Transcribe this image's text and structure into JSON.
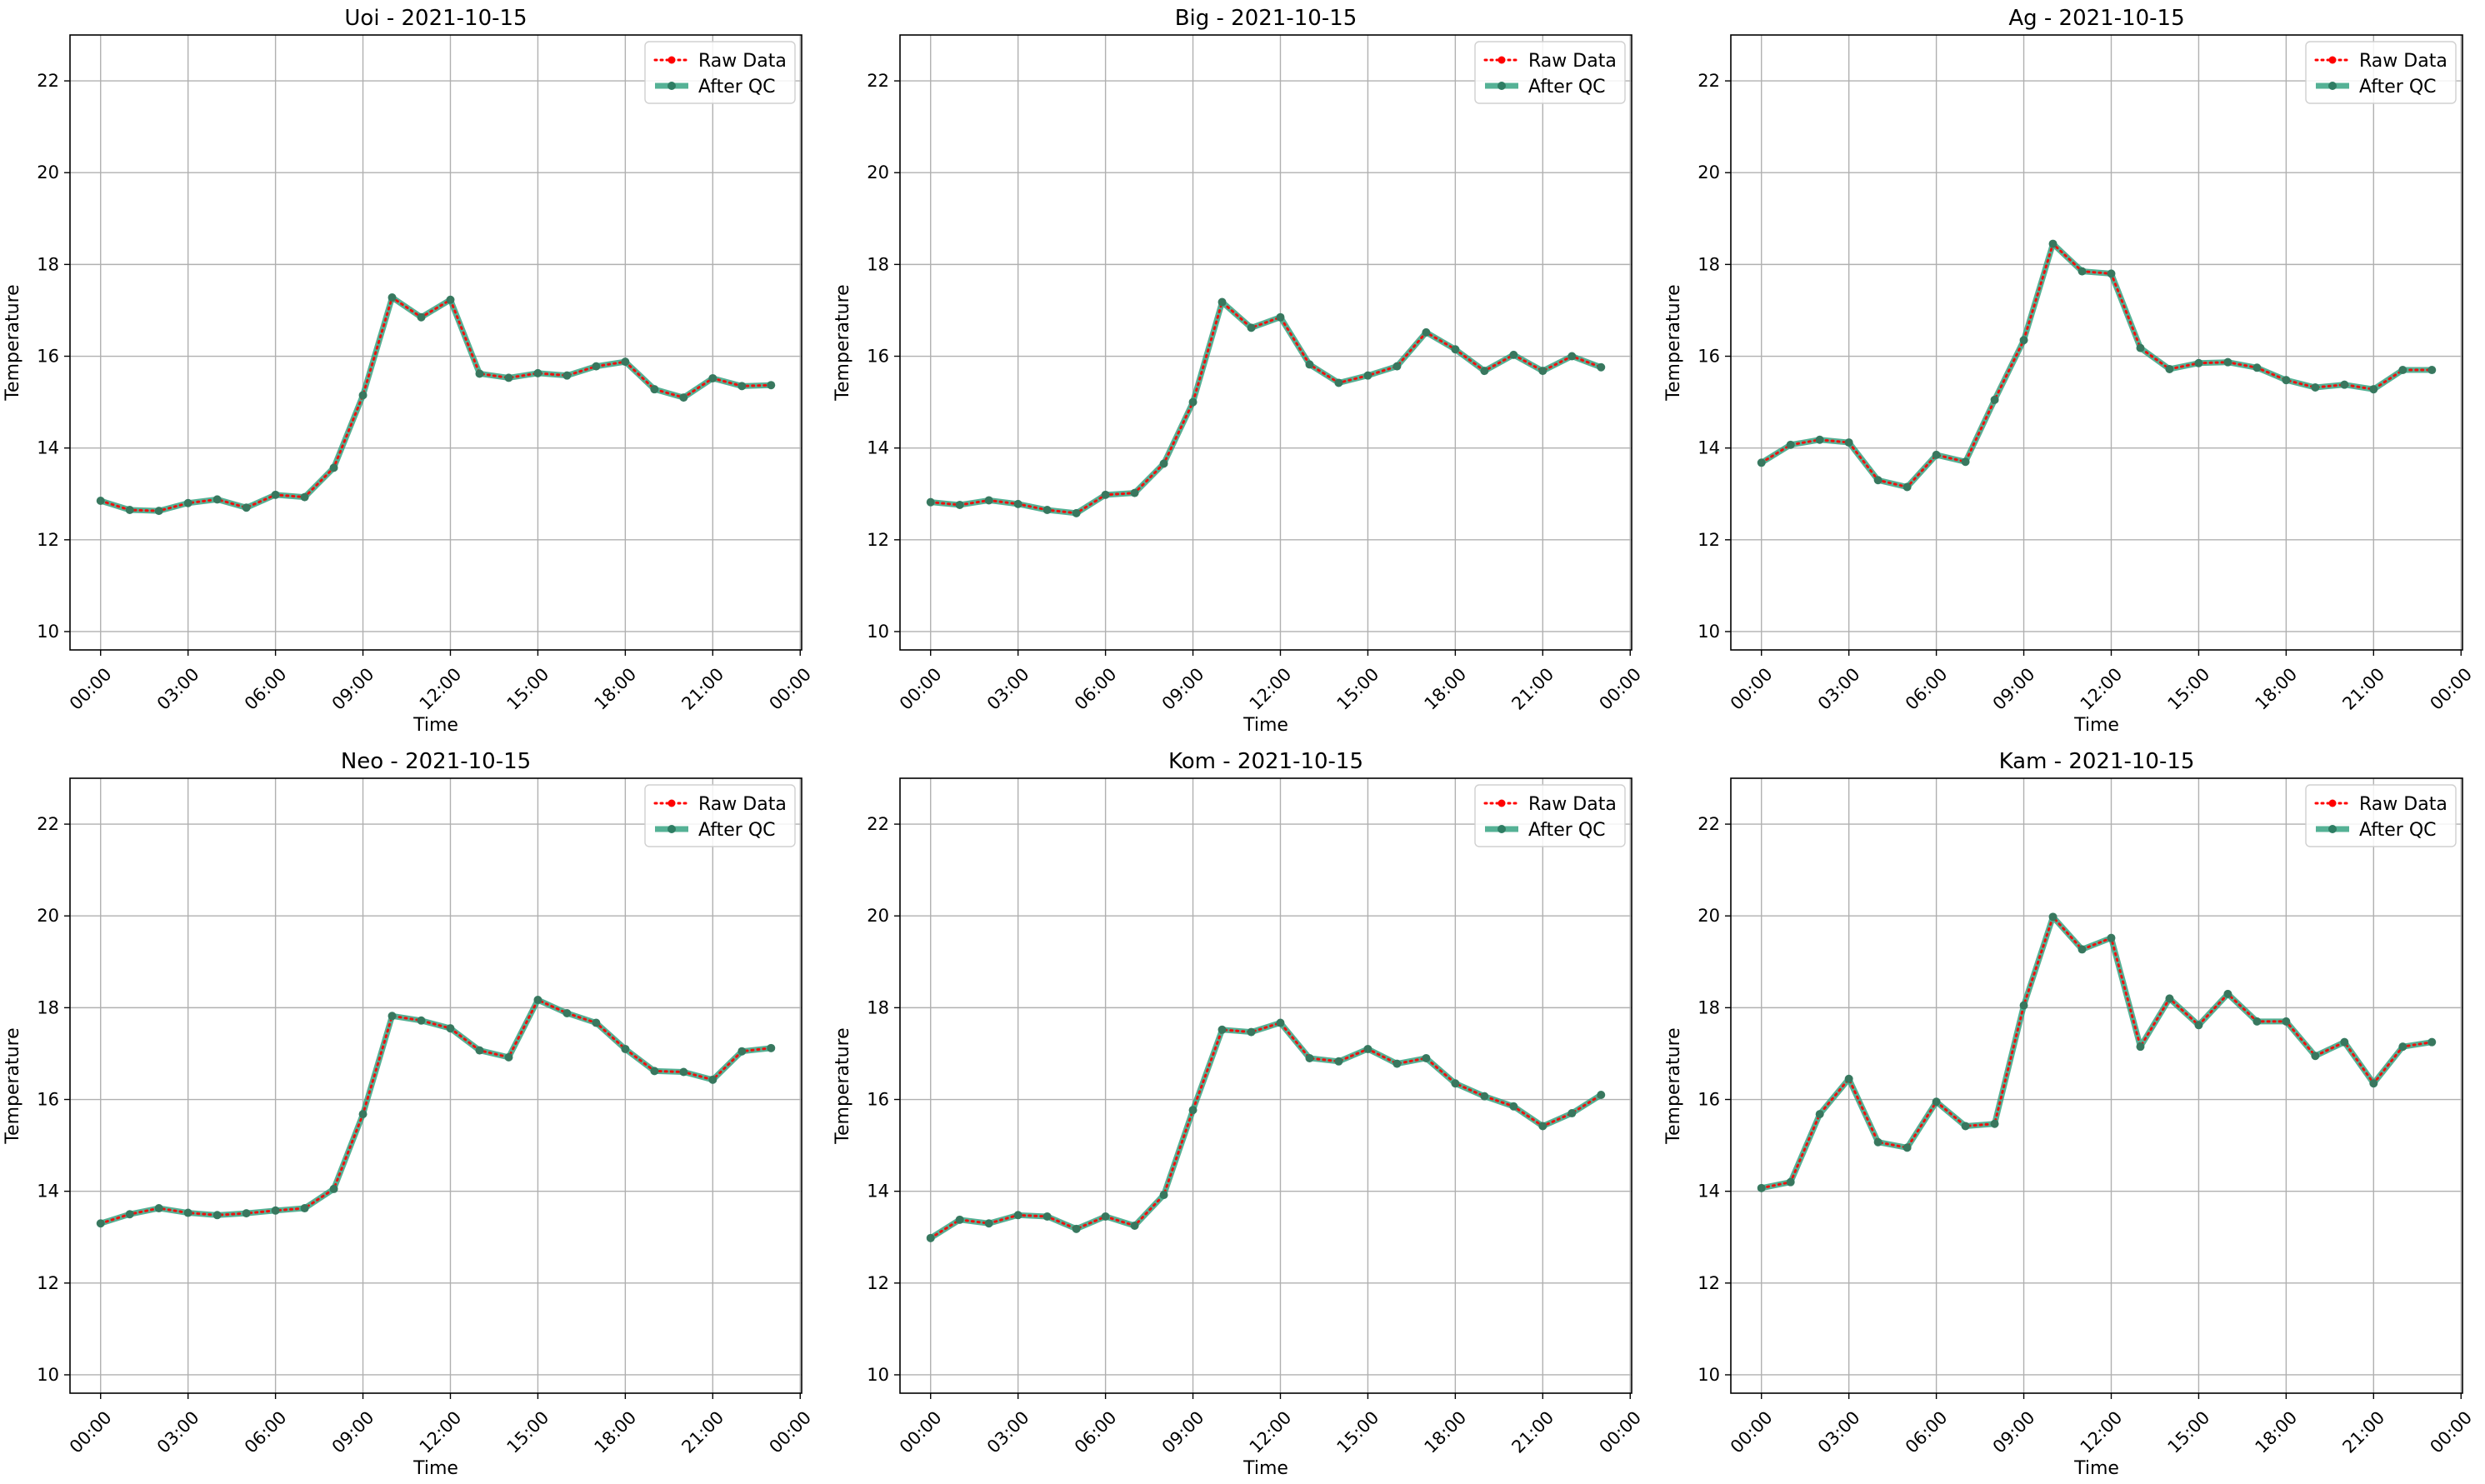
{
  "colors": {
    "raw": "#ff0000",
    "qc": "#2a9d7a",
    "qc_marker": "#2e7d63",
    "grid": "#b0b0b0",
    "axes": "#000000"
  },
  "chart_data": [
    {
      "type": "line",
      "title": "Uoi - 2021-10-15",
      "xlabel": "Time",
      "ylabel": "Temperature",
      "xlim_hours": [
        -1.05,
        24.05
      ],
      "ylim": [
        9.6,
        23.0
      ],
      "yticks": [
        10,
        12,
        14,
        16,
        18,
        20,
        22
      ],
      "xtick_labels": [
        "00:00",
        "03:00",
        "06:00",
        "09:00",
        "12:00",
        "15:00",
        "18:00",
        "21:00",
        "00:00"
      ],
      "grid": true,
      "legend_position": "top-right",
      "x": [
        "00:00",
        "01:00",
        "02:00",
        "03:00",
        "04:00",
        "05:00",
        "06:00",
        "07:00",
        "08:00",
        "09:00",
        "10:00",
        "11:00",
        "12:00",
        "13:00",
        "14:00",
        "15:00",
        "16:00",
        "17:00",
        "18:00",
        "19:00",
        "20:00",
        "21:00",
        "22:00",
        "23:00"
      ],
      "series": [
        {
          "name": "Raw Data",
          "values": [
            12.85,
            12.65,
            12.63,
            12.8,
            12.88,
            12.7,
            12.98,
            12.93,
            13.57,
            15.15,
            17.28,
            16.85,
            17.23,
            15.62,
            15.53,
            15.63,
            15.58,
            15.78,
            15.88,
            15.28,
            15.1,
            15.52,
            15.35,
            15.37
          ]
        },
        {
          "name": "After QC",
          "values": [
            12.85,
            12.65,
            12.63,
            12.8,
            12.88,
            12.7,
            12.98,
            12.93,
            13.57,
            15.15,
            17.28,
            16.85,
            17.23,
            15.62,
            15.53,
            15.63,
            15.58,
            15.78,
            15.88,
            15.28,
            15.1,
            15.52,
            15.35,
            15.37
          ]
        }
      ]
    },
    {
      "type": "line",
      "title": "Big - 2021-10-15",
      "xlabel": "Time",
      "ylabel": "Temperature",
      "xlim_hours": [
        -1.05,
        24.05
      ],
      "ylim": [
        9.6,
        23.0
      ],
      "yticks": [
        10,
        12,
        14,
        16,
        18,
        20,
        22
      ],
      "xtick_labels": [
        "00:00",
        "03:00",
        "06:00",
        "09:00",
        "12:00",
        "15:00",
        "18:00",
        "21:00",
        "00:00"
      ],
      "grid": true,
      "legend_position": "top-right",
      "x": [
        "00:00",
        "01:00",
        "02:00",
        "03:00",
        "04:00",
        "05:00",
        "06:00",
        "07:00",
        "08:00",
        "09:00",
        "10:00",
        "11:00",
        "12:00",
        "13:00",
        "14:00",
        "15:00",
        "16:00",
        "17:00",
        "18:00",
        "19:00",
        "20:00",
        "21:00",
        "22:00",
        "23:00"
      ],
      "series": [
        {
          "name": "Raw Data",
          "values": [
            12.82,
            12.76,
            12.86,
            12.78,
            12.65,
            12.58,
            12.98,
            13.02,
            13.66,
            15.0,
            17.18,
            16.62,
            16.85,
            15.82,
            15.42,
            15.58,
            15.78,
            16.52,
            16.15,
            15.68,
            16.03,
            15.68,
            16.0,
            15.76
          ]
        },
        {
          "name": "After QC",
          "values": [
            12.82,
            12.76,
            12.86,
            12.78,
            12.65,
            12.58,
            12.98,
            13.02,
            13.66,
            15.0,
            17.18,
            16.62,
            16.85,
            15.82,
            15.42,
            15.58,
            15.78,
            16.52,
            16.15,
            15.68,
            16.03,
            15.68,
            16.0,
            15.76
          ]
        }
      ]
    },
    {
      "type": "line",
      "title": "Ag - 2021-10-15",
      "xlabel": "Time",
      "ylabel": "Temperature",
      "xlim_hours": [
        -1.05,
        24.05
      ],
      "ylim": [
        9.6,
        23.0
      ],
      "yticks": [
        10,
        12,
        14,
        16,
        18,
        20,
        22
      ],
      "xtick_labels": [
        "00:00",
        "03:00",
        "06:00",
        "09:00",
        "12:00",
        "15:00",
        "18:00",
        "21:00",
        "00:00"
      ],
      "grid": true,
      "legend_position": "top-right",
      "x": [
        "00:00",
        "01:00",
        "02:00",
        "03:00",
        "04:00",
        "05:00",
        "06:00",
        "07:00",
        "08:00",
        "09:00",
        "10:00",
        "11:00",
        "12:00",
        "13:00",
        "14:00",
        "15:00",
        "16:00",
        "17:00",
        "18:00",
        "19:00",
        "20:00",
        "21:00",
        "22:00",
        "23:00"
      ],
      "series": [
        {
          "name": "Raw Data",
          "values": [
            13.68,
            14.07,
            14.18,
            14.12,
            13.3,
            13.15,
            13.85,
            13.7,
            15.05,
            16.35,
            18.45,
            17.85,
            17.8,
            16.18,
            15.72,
            15.85,
            15.87,
            15.75,
            15.48,
            15.32,
            15.38,
            15.28,
            15.7,
            15.7
          ]
        },
        {
          "name": "After QC",
          "values": [
            13.68,
            14.07,
            14.18,
            14.12,
            13.3,
            13.15,
            13.85,
            13.7,
            15.05,
            16.35,
            18.45,
            17.85,
            17.8,
            16.18,
            15.72,
            15.85,
            15.87,
            15.75,
            15.48,
            15.32,
            15.38,
            15.28,
            15.7,
            15.7
          ]
        }
      ]
    },
    {
      "type": "line",
      "title": "Neo - 2021-10-15",
      "xlabel": "Time",
      "ylabel": "Temperature",
      "xlim_hours": [
        -1.05,
        24.05
      ],
      "ylim": [
        9.6,
        23.0
      ],
      "yticks": [
        10,
        12,
        14,
        16,
        18,
        20,
        22
      ],
      "xtick_labels": [
        "00:00",
        "03:00",
        "06:00",
        "09:00",
        "12:00",
        "15:00",
        "18:00",
        "21:00",
        "00:00"
      ],
      "grid": true,
      "legend_position": "top-right",
      "x": [
        "00:00",
        "01:00",
        "02:00",
        "03:00",
        "04:00",
        "05:00",
        "06:00",
        "07:00",
        "08:00",
        "09:00",
        "10:00",
        "11:00",
        "12:00",
        "13:00",
        "14:00",
        "15:00",
        "16:00",
        "17:00",
        "18:00",
        "19:00",
        "20:00",
        "21:00",
        "22:00",
        "23:00"
      ],
      "series": [
        {
          "name": "Raw Data",
          "values": [
            13.3,
            13.5,
            13.63,
            13.53,
            13.48,
            13.52,
            13.58,
            13.63,
            14.05,
            15.68,
            17.82,
            17.72,
            17.55,
            17.07,
            16.92,
            18.17,
            17.88,
            17.67,
            17.1,
            16.62,
            16.6,
            16.43,
            17.05,
            17.12
          ]
        },
        {
          "name": "After QC",
          "values": [
            13.3,
            13.5,
            13.63,
            13.53,
            13.48,
            13.52,
            13.58,
            13.63,
            14.05,
            15.68,
            17.82,
            17.72,
            17.55,
            17.07,
            16.92,
            18.17,
            17.88,
            17.67,
            17.1,
            16.62,
            16.6,
            16.43,
            17.05,
            17.12
          ]
        }
      ]
    },
    {
      "type": "line",
      "title": "Kom - 2021-10-15",
      "xlabel": "Time",
      "ylabel": "Temperature",
      "xlim_hours": [
        -1.05,
        24.05
      ],
      "ylim": [
        9.6,
        23.0
      ],
      "yticks": [
        10,
        12,
        14,
        16,
        18,
        20,
        22
      ],
      "xtick_labels": [
        "00:00",
        "03:00",
        "06:00",
        "09:00",
        "12:00",
        "15:00",
        "18:00",
        "21:00",
        "00:00"
      ],
      "grid": true,
      "legend_position": "top-right",
      "x": [
        "00:00",
        "01:00",
        "02:00",
        "03:00",
        "04:00",
        "05:00",
        "06:00",
        "07:00",
        "08:00",
        "09:00",
        "10:00",
        "11:00",
        "12:00",
        "13:00",
        "14:00",
        "15:00",
        "16:00",
        "17:00",
        "18:00",
        "19:00",
        "20:00",
        "21:00",
        "22:00",
        "23:00"
      ],
      "series": [
        {
          "name": "Raw Data",
          "values": [
            12.98,
            13.38,
            13.3,
            13.48,
            13.45,
            13.18,
            13.45,
            13.25,
            13.92,
            15.77,
            17.52,
            17.47,
            17.67,
            16.9,
            16.83,
            17.1,
            16.78,
            16.9,
            16.35,
            16.07,
            15.85,
            15.42,
            15.7,
            16.1
          ]
        },
        {
          "name": "After QC",
          "values": [
            12.98,
            13.38,
            13.3,
            13.48,
            13.45,
            13.18,
            13.45,
            13.25,
            13.92,
            15.77,
            17.52,
            17.47,
            17.67,
            16.9,
            16.83,
            17.1,
            16.78,
            16.9,
            16.35,
            16.07,
            15.85,
            15.42,
            15.7,
            16.1
          ]
        }
      ]
    },
    {
      "type": "line",
      "title": "Kam - 2021-10-15",
      "xlabel": "Time",
      "ylabel": "Temperature",
      "xlim_hours": [
        -1.05,
        24.05
      ],
      "ylim": [
        9.6,
        23.0
      ],
      "yticks": [
        10,
        12,
        14,
        16,
        18,
        20,
        22
      ],
      "xtick_labels": [
        "00:00",
        "03:00",
        "06:00",
        "09:00",
        "12:00",
        "15:00",
        "18:00",
        "21:00",
        "00:00"
      ],
      "grid": true,
      "legend_position": "top-right",
      "x": [
        "00:00",
        "01:00",
        "02:00",
        "03:00",
        "04:00",
        "05:00",
        "06:00",
        "07:00",
        "08:00",
        "09:00",
        "10:00",
        "11:00",
        "12:00",
        "13:00",
        "14:00",
        "15:00",
        "16:00",
        "17:00",
        "18:00",
        "19:00",
        "20:00",
        "21:00",
        "22:00",
        "23:00"
      ],
      "series": [
        {
          "name": "Raw Data",
          "values": [
            14.07,
            14.2,
            15.68,
            16.45,
            15.07,
            14.95,
            15.95,
            15.42,
            15.47,
            18.05,
            19.98,
            19.27,
            19.52,
            17.15,
            18.2,
            17.62,
            18.3,
            17.7,
            17.7,
            16.95,
            17.25,
            16.35,
            17.15,
            17.25
          ]
        },
        {
          "name": "After QC",
          "values": [
            14.07,
            14.2,
            15.68,
            16.45,
            15.07,
            14.95,
            15.95,
            15.42,
            15.47,
            18.05,
            19.98,
            19.27,
            19.52,
            17.15,
            18.2,
            17.62,
            18.3,
            17.7,
            17.7,
            16.95,
            17.25,
            16.35,
            17.15,
            17.25
          ]
        }
      ]
    }
  ]
}
